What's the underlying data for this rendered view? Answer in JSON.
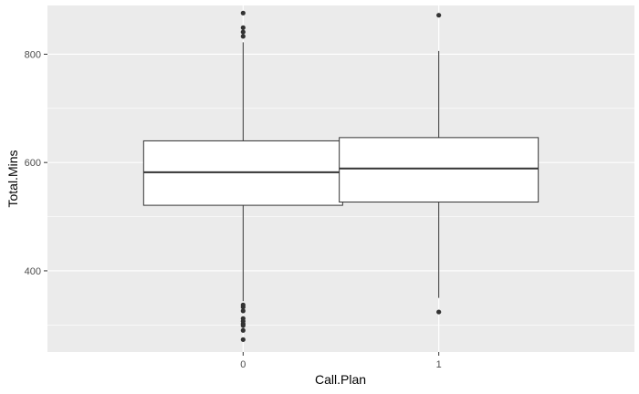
{
  "chart_data": {
    "type": "boxplot",
    "title": "",
    "xlabel": "Call.Plan",
    "ylabel": "Total.Mins",
    "categories": [
      "0",
      "1"
    ],
    "ylim": [
      250,
      890
    ],
    "yticks": [
      400,
      600,
      800
    ],
    "grid": true,
    "legend": "none",
    "colors": {
      "panel": "#ebebeb",
      "grid": "#ffffff",
      "box_fill": "#ffffff",
      "line": "#333333",
      "tick_text": "#4d4d4d"
    },
    "boxes": [
      {
        "category": "0",
        "whisker_low": 344,
        "q1": 521,
        "median": 582,
        "q3": 640,
        "whisker_high": 822,
        "outliers": [
          876,
          849,
          841,
          833,
          337,
          333,
          326,
          312,
          307,
          302,
          299,
          290,
          273
        ]
      },
      {
        "category": "1",
        "whisker_low": 350,
        "q1": 527,
        "median": 589,
        "q3": 646,
        "whisker_high": 806,
        "outliers": [
          872,
          324
        ]
      }
    ]
  }
}
